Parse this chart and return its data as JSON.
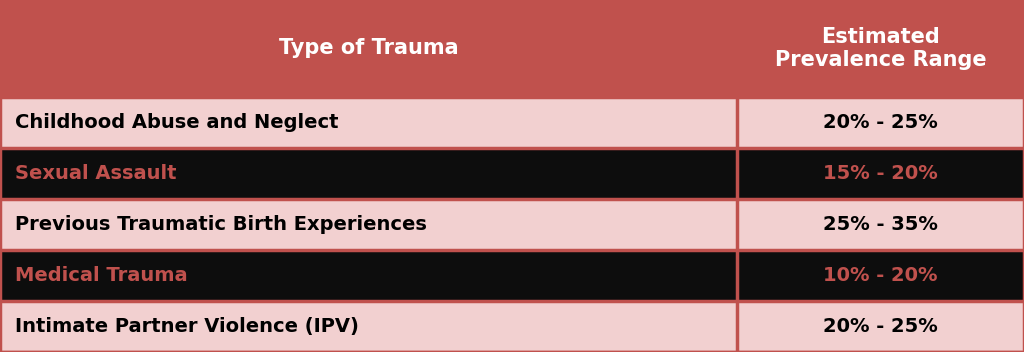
{
  "header": [
    "Type of Trauma",
    "Estimated\nPrevalence Range"
  ],
  "rows": [
    [
      "Childhood Abuse and Neglect",
      "20% - 25%"
    ],
    [
      "Sexual Assault",
      "15% - 20%"
    ],
    [
      "Previous Traumatic Birth Experiences",
      "25% - 35%"
    ],
    [
      "Medical Trauma",
      "10% - 20%"
    ],
    [
      "Intimate Partner Violence (IPV)",
      "20% - 25%"
    ]
  ],
  "header_bg": "#c0514d",
  "row_colors": [
    "#f2d0d0",
    "#0d0d0d",
    "#f2d0d0",
    "#0d0d0d",
    "#f2d0d0"
  ],
  "header_text_color": "#ffffff",
  "light_row_text_color": "#000000",
  "dark_row_text_color": "#c0514d",
  "border_color": "#c0514d",
  "col_split": 0.72,
  "fig_width": 10.24,
  "fig_height": 3.52,
  "header_fontsize": 15,
  "row_fontsize": 14,
  "dpi": 100
}
